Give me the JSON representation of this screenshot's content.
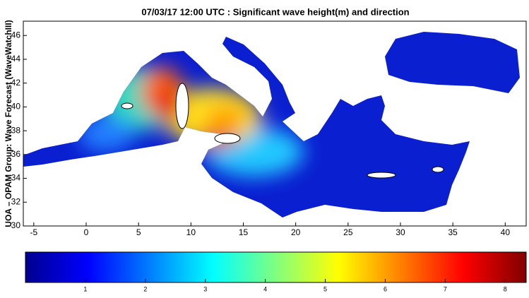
{
  "title": "07/03/17 12:00 UTC : Significant wave height(m) and direction",
  "ylabel": "UOA – OPAM Group: Wave Forecast  (WaveWatchIII)",
  "map": {
    "xlim": [
      -6,
      42
    ],
    "ylim": [
      30,
      47.2
    ],
    "xticks": [
      -5,
      0,
      5,
      10,
      15,
      20,
      25,
      30,
      35,
      40
    ],
    "yticks": [
      30,
      32,
      34,
      36,
      38,
      40,
      42,
      44,
      46
    ]
  },
  "colorbar": {
    "lim": [
      0,
      8.35
    ],
    "ticks": [
      1,
      2,
      3,
      4,
      5,
      6,
      7,
      8
    ]
  }
}
